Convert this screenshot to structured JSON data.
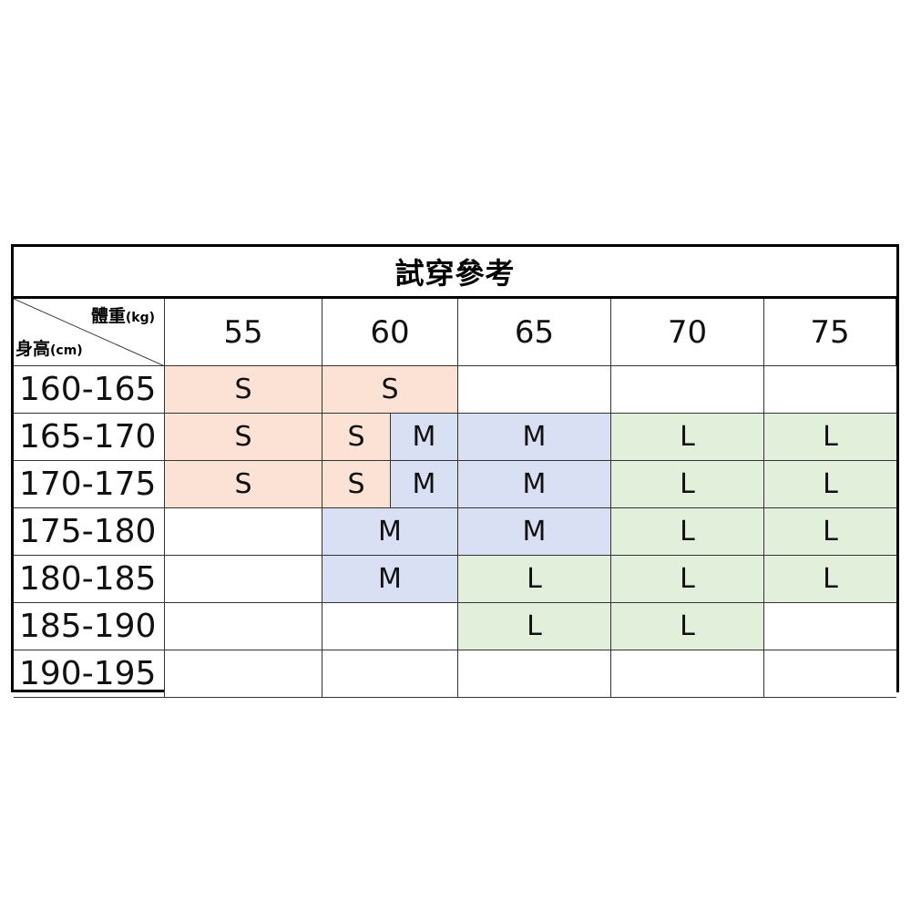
{
  "title": "試穿參考",
  "corner": {
    "weight_label": "體重",
    "weight_unit": "(kg)",
    "height_label": "身高",
    "height_unit": "(cm)"
  },
  "weights": [
    "55",
    "60",
    "65",
    "70",
    "75"
  ],
  "colors": {
    "S": "#fbe2d5",
    "M": "#dae0f3",
    "L": "#e2efda"
  },
  "rows": [
    {
      "label": "160-165",
      "cells": [
        {
          "text": "S",
          "span": 1
        },
        {
          "text": "S",
          "span": 2
        },
        {
          "text": "",
          "span": 1
        },
        {
          "text": "",
          "span": 1
        },
        {
          "text": "",
          "span": 1
        }
      ]
    },
    {
      "label": "165-170",
      "cells": [
        {
          "text": "S",
          "span": 1
        },
        {
          "text": "S",
          "span": 1
        },
        {
          "text": "M",
          "span": 1
        },
        {
          "text": "M",
          "span": 1
        },
        {
          "text": "L",
          "span": 1
        },
        {
          "text": "L",
          "span": 1
        }
      ]
    },
    {
      "label": "170-175",
      "cells": [
        {
          "text": "S",
          "span": 1
        },
        {
          "text": "S",
          "span": 1
        },
        {
          "text": "M",
          "span": 1
        },
        {
          "text": "M",
          "span": 1
        },
        {
          "text": "L",
          "span": 1
        },
        {
          "text": "L",
          "span": 1
        }
      ]
    },
    {
      "label": "175-180",
      "cells": [
        {
          "text": "",
          "span": 1
        },
        {
          "text": "M",
          "span": 2
        },
        {
          "text": "M",
          "span": 1
        },
        {
          "text": "L",
          "span": 1
        },
        {
          "text": "L",
          "span": 1
        }
      ]
    },
    {
      "label": "180-185",
      "cells": [
        {
          "text": "",
          "span": 1
        },
        {
          "text": "M",
          "span": 2
        },
        {
          "text": "L",
          "span": 1
        },
        {
          "text": "L",
          "span": 1
        },
        {
          "text": "L",
          "span": 1
        }
      ]
    },
    {
      "label": "185-190",
      "cells": [
        {
          "text": "",
          "span": 1
        },
        {
          "text": "",
          "span": 2
        },
        {
          "text": "L",
          "span": 1
        },
        {
          "text": "L",
          "span": 1
        },
        {
          "text": "",
          "span": 1
        }
      ]
    },
    {
      "label": "190-195",
      "cells": [
        {
          "text": "",
          "span": 1
        },
        {
          "text": "",
          "span": 2
        },
        {
          "text": "",
          "span": 1
        },
        {
          "text": "",
          "span": 1
        },
        {
          "text": "",
          "span": 1
        }
      ]
    }
  ]
}
